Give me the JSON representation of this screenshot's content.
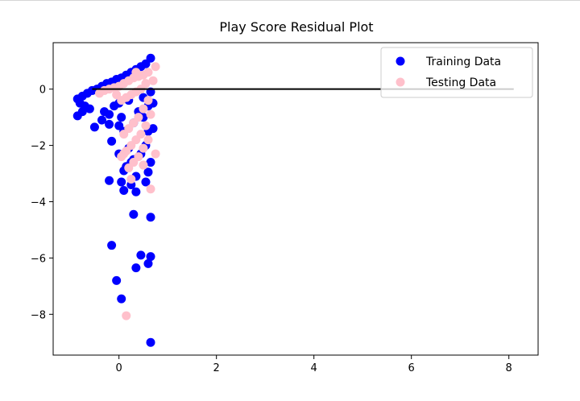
{
  "chart_data": {
    "type": "scatter",
    "title": "Play Score Residual Plot",
    "xlabel": "",
    "ylabel": "",
    "xlim": [
      -1.35,
      8.6
    ],
    "ylim": [
      -9.45,
      1.65
    ],
    "xticks": [
      0,
      2,
      4,
      6,
      8
    ],
    "yticks": [
      0,
      -2,
      -4,
      -6,
      -8
    ],
    "grid": false,
    "legend_position": "top-right",
    "hline": {
      "y": 0,
      "xmin": -0.55,
      "xmax": 8.1,
      "color": "#000000"
    },
    "colors": {
      "training": "#0000ff",
      "testing": "#ffc0cb"
    },
    "series": [
      {
        "name": "Training Data",
        "color": "#0000ff",
        "points": [
          [
            0.65,
            1.1
          ],
          [
            0.55,
            0.9
          ],
          [
            0.45,
            0.8
          ],
          [
            0.35,
            0.7
          ],
          [
            0.25,
            0.6
          ],
          [
            0.15,
            0.5
          ],
          [
            0.05,
            0.4
          ],
          [
            -0.05,
            0.35
          ],
          [
            -0.15,
            0.25
          ],
          [
            -0.25,
            0.2
          ],
          [
            -0.35,
            0.1
          ],
          [
            -0.45,
            0.0
          ],
          [
            -0.55,
            -0.05
          ],
          [
            -0.65,
            -0.15
          ],
          [
            -0.75,
            -0.25
          ],
          [
            -0.85,
            -0.35
          ],
          [
            -0.8,
            -0.5
          ],
          [
            -0.7,
            -0.6
          ],
          [
            -0.6,
            -0.7
          ],
          [
            -0.75,
            -0.8
          ],
          [
            -0.85,
            -0.95
          ],
          [
            -0.5,
            -1.35
          ],
          [
            -0.35,
            -1.1
          ],
          [
            -0.3,
            -0.8
          ],
          [
            -0.2,
            -0.9
          ],
          [
            -0.1,
            -0.6
          ],
          [
            0.0,
            -0.5
          ],
          [
            0.05,
            -1.0
          ],
          [
            0.0,
            -1.3
          ],
          [
            -0.2,
            -1.25
          ],
          [
            0.1,
            -1.5
          ],
          [
            -0.15,
            -1.85
          ],
          [
            0.2,
            -2.1
          ],
          [
            0.0,
            -2.3
          ],
          [
            0.3,
            -2.5
          ],
          [
            0.15,
            -2.75
          ],
          [
            0.25,
            -2.6
          ],
          [
            0.1,
            -2.9
          ],
          [
            0.35,
            -3.1
          ],
          [
            0.25,
            -3.4
          ],
          [
            0.35,
            -3.65
          ],
          [
            0.1,
            -3.6
          ],
          [
            0.05,
            -3.3
          ],
          [
            -0.2,
            -3.25
          ],
          [
            0.5,
            -1.0
          ],
          [
            0.6,
            -1.5
          ],
          [
            0.55,
            -2.0
          ],
          [
            0.45,
            -2.3
          ],
          [
            0.65,
            -2.6
          ],
          [
            0.6,
            -2.95
          ],
          [
            0.55,
            -3.3
          ],
          [
            0.7,
            -1.4
          ],
          [
            0.6,
            -0.6
          ],
          [
            0.5,
            -0.3
          ],
          [
            0.3,
            -1.2
          ],
          [
            0.2,
            -0.4
          ],
          [
            0.4,
            -0.8
          ],
          [
            0.7,
            -0.5
          ],
          [
            0.65,
            -0.1
          ],
          [
            0.3,
            -4.45
          ],
          [
            0.65,
            -4.55
          ],
          [
            -0.15,
            -5.55
          ],
          [
            0.45,
            -5.9
          ],
          [
            0.6,
            -6.2
          ],
          [
            0.65,
            -5.95
          ],
          [
            0.35,
            -6.35
          ],
          [
            -0.05,
            -6.8
          ],
          [
            0.05,
            -7.45
          ],
          [
            0.65,
            -9.0
          ]
        ]
      },
      {
        "name": "Testing Data",
        "color": "#ffc0cb",
        "points": [
          [
            0.75,
            0.8
          ],
          [
            0.6,
            0.6
          ],
          [
            0.5,
            0.5
          ],
          [
            0.4,
            0.45
          ],
          [
            0.3,
            0.4
          ],
          [
            0.2,
            0.3
          ],
          [
            0.1,
            0.2
          ],
          [
            0.0,
            0.1
          ],
          [
            -0.1,
            0.05
          ],
          [
            -0.2,
            0.0
          ],
          [
            -0.3,
            -0.05
          ],
          [
            -0.4,
            -0.15
          ],
          [
            0.55,
            0.2
          ],
          [
            0.45,
            0.0
          ],
          [
            0.35,
            -0.1
          ],
          [
            0.25,
            -0.2
          ],
          [
            0.15,
            -0.3
          ],
          [
            0.05,
            -0.4
          ],
          [
            0.6,
            -0.4
          ],
          [
            0.5,
            -0.7
          ],
          [
            0.4,
            -1.0
          ],
          [
            0.3,
            -1.2
          ],
          [
            0.2,
            -1.4
          ],
          [
            0.1,
            -1.6
          ],
          [
            0.55,
            -1.3
          ],
          [
            0.45,
            -1.6
          ],
          [
            0.35,
            -1.8
          ],
          [
            0.25,
            -2.0
          ],
          [
            0.15,
            -2.2
          ],
          [
            0.05,
            -2.4
          ],
          [
            0.6,
            -1.8
          ],
          [
            0.5,
            -2.1
          ],
          [
            0.4,
            -2.4
          ],
          [
            0.3,
            -2.6
          ],
          [
            0.2,
            -2.8
          ],
          [
            0.1,
            -2.3
          ],
          [
            0.75,
            -2.3
          ],
          [
            0.5,
            -2.7
          ],
          [
            0.25,
            -3.2
          ],
          [
            0.65,
            -3.55
          ],
          [
            0.15,
            -8.05
          ],
          [
            0.7,
            0.3
          ],
          [
            0.65,
            -0.9
          ],
          [
            0.35,
            0.6
          ],
          [
            -0.05,
            -0.2
          ]
        ]
      }
    ]
  }
}
